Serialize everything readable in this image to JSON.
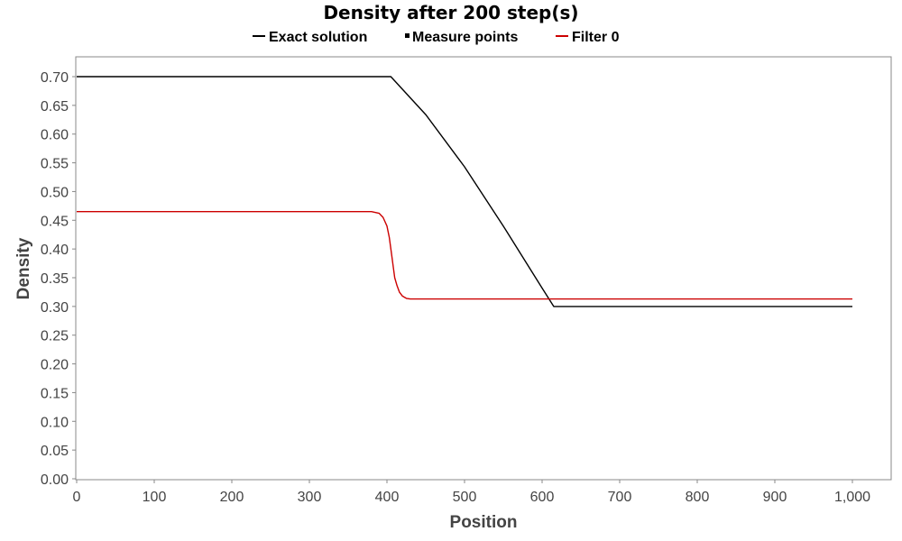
{
  "chart_data": {
    "type": "line",
    "title": "Density after 200 step(s)",
    "xlabel": "Position",
    "ylabel": "Density",
    "xlim": [
      0,
      1040
    ],
    "ylim": [
      0,
      0.7
    ],
    "x_ticks": [
      0,
      100,
      200,
      300,
      400,
      500,
      600,
      700,
      800,
      900,
      1000
    ],
    "x_tick_labels": [
      "0",
      "100",
      "200",
      "300",
      "400",
      "500",
      "600",
      "700",
      "800",
      "900",
      "1,000"
    ],
    "y_ticks": [
      0,
      0.05,
      0.1,
      0.15,
      0.2,
      0.25,
      0.3,
      0.35,
      0.4,
      0.45,
      0.5,
      0.55,
      0.6,
      0.65,
      0.7
    ],
    "y_tick_labels": [
      "0.00",
      "0.05",
      "0.10",
      "0.15",
      "0.20",
      "0.25",
      "0.30",
      "0.35",
      "0.40",
      "0.45",
      "0.50",
      "0.55",
      "0.60",
      "0.65",
      "0.70"
    ],
    "grid": false,
    "legend_position": "top-center",
    "legend": [
      {
        "label": "Exact solution",
        "symbol": "line",
        "color": "#000000"
      },
      {
        "label": "Measure points",
        "symbol": "square",
        "color": "#000000"
      },
      {
        "label": "Filter 0",
        "symbol": "line",
        "color": "#cc0000"
      }
    ],
    "series": [
      {
        "name": "Exact solution",
        "color": "#000000",
        "x": [
          0,
          400,
          405,
          450,
          500,
          550,
          600,
          615,
          1000
        ],
        "y": [
          0.7,
          0.7,
          0.7,
          0.634,
          0.543,
          0.44,
          0.332,
          0.3,
          0.3
        ]
      },
      {
        "name": "Measure points",
        "color": "#000000",
        "x": [],
        "y": []
      },
      {
        "name": "Filter 0",
        "color": "#cc0000",
        "x": [
          0,
          370,
          380,
          390,
          395,
          400,
          403,
          406,
          408,
          410,
          413,
          416,
          420,
          425,
          430,
          440,
          1000
        ],
        "y": [
          0.465,
          0.465,
          0.465,
          0.462,
          0.455,
          0.44,
          0.42,
          0.39,
          0.37,
          0.35,
          0.336,
          0.325,
          0.318,
          0.314,
          0.313,
          0.313,
          0.313
        ]
      }
    ]
  }
}
